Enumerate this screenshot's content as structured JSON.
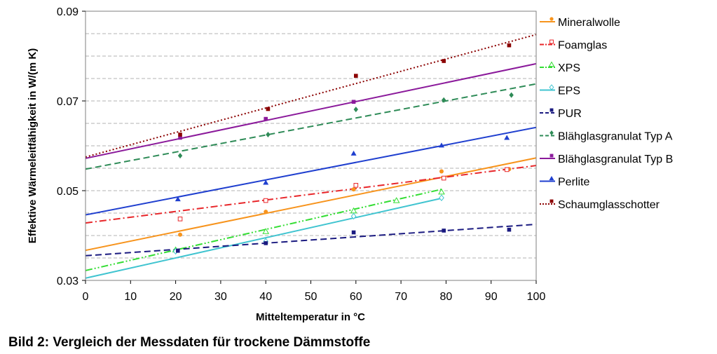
{
  "chart_data": {
    "type": "scatter",
    "title": "",
    "xlabel": "Mitteltemperatur in °C",
    "ylabel": "Effektive Wärmeleitfähigkeit in W/(m K)",
    "xlim": [
      0,
      100
    ],
    "ylim": [
      0.03,
      0.09
    ],
    "x_ticks": [
      "0",
      "10",
      "20",
      "30",
      "40",
      "50",
      "60",
      "70",
      "80",
      "90",
      "100"
    ],
    "y_ticks": [
      "0.03",
      "0.05",
      "0.07",
      "0.09"
    ],
    "grid": "horizontal dashed",
    "legend_position": "right",
    "series": [
      {
        "name": "Mineralwolle",
        "color": "#f7941d",
        "marker": "circle",
        "line": "solid",
        "points": [
          [
            21,
            0.0402
          ],
          [
            40,
            0.0453
          ],
          [
            59.5,
            0.0503
          ],
          [
            79,
            0.0543
          ],
          [
            94,
            0.0548
          ]
        ],
        "trend": [
          [
            0,
            0.0367
          ],
          [
            100,
            0.0573
          ]
        ]
      },
      {
        "name": "Foamglas",
        "color": "#e8262a",
        "marker": "square-open",
        "line": "dashdot",
        "points": [
          [
            21,
            0.0437
          ],
          [
            40,
            0.0478
          ],
          [
            60,
            0.0512
          ],
          [
            79.5,
            0.0528
          ],
          [
            93.5,
            0.0547
          ]
        ],
        "trend": [
          [
            0,
            0.0428
          ],
          [
            100,
            0.0556
          ]
        ]
      },
      {
        "name": "XPS",
        "color": "#33dd33",
        "marker": "triangle-open",
        "line": "dashdotdot",
        "points": [
          [
            20,
            0.0368
          ],
          [
            40,
            0.0409
          ],
          [
            59.5,
            0.0455
          ],
          [
            69,
            0.0478
          ],
          [
            79,
            0.0497
          ]
        ],
        "trend": [
          [
            0,
            0.0322
          ],
          [
            79,
            0.0503
          ]
        ]
      },
      {
        "name": "EPS",
        "color": "#40c4d0",
        "marker": "diamond-open",
        "line": "solid",
        "points": [
          [
            20,
            0.0365
          ],
          [
            40,
            0.0387
          ],
          [
            59.5,
            0.0443
          ],
          [
            79,
            0.0484
          ]
        ],
        "trend": [
          [
            0,
            0.0305
          ],
          [
            79,
            0.0483
          ]
        ]
      },
      {
        "name": "PUR",
        "color": "#1a1a80",
        "marker": "square",
        "line": "dashed",
        "points": [
          [
            20.5,
            0.0366
          ],
          [
            40,
            0.0383
          ],
          [
            59.5,
            0.0407
          ],
          [
            79.5,
            0.0411
          ],
          [
            94,
            0.0413
          ]
        ],
        "trend": [
          [
            0,
            0.0355
          ],
          [
            100,
            0.0425
          ]
        ]
      },
      {
        "name": "Blähglasgranulat Typ A",
        "color": "#2e8b57",
        "marker": "diamond",
        "line": "dashed",
        "points": [
          [
            21,
            0.0578
          ],
          [
            40.5,
            0.0625
          ],
          [
            60,
            0.0681
          ],
          [
            79.5,
            0.0702
          ],
          [
            94.5,
            0.0713
          ]
        ],
        "trend": [
          [
            0,
            0.0548
          ],
          [
            100,
            0.0738
          ]
        ]
      },
      {
        "name": "Blähglasgranulat Typ B",
        "color": "#8b1a9b",
        "marker": "square",
        "line": "solid",
        "points": [
          [
            21,
            0.0618
          ],
          [
            40,
            0.066
          ],
          [
            59.5,
            0.0698
          ]
        ],
        "trend": [
          [
            0,
            0.0572
          ],
          [
            100,
            0.0783
          ]
        ]
      },
      {
        "name": "Perlite",
        "color": "#1f3fcf",
        "marker": "triangle",
        "line": "solid",
        "points": [
          [
            20.5,
            0.0481
          ],
          [
            40,
            0.0518
          ],
          [
            59.5,
            0.0583
          ],
          [
            79,
            0.0601
          ],
          [
            93.5,
            0.0618
          ]
        ],
        "trend": [
          [
            0,
            0.0446
          ],
          [
            100,
            0.0641
          ]
        ]
      },
      {
        "name": "Schaumglasschotter",
        "color": "#8b0000",
        "marker": "square",
        "line": "dotted",
        "points": [
          [
            21,
            0.0625
          ],
          [
            40.5,
            0.0682
          ],
          [
            60,
            0.0756
          ],
          [
            79.5,
            0.0789
          ],
          [
            94,
            0.0824
          ]
        ],
        "trend": [
          [
            0,
            0.0575
          ],
          [
            100,
            0.0848
          ]
        ]
      }
    ]
  },
  "caption": "Bild 2: Vergleich der Messdaten für trockene Dämmstoffe"
}
